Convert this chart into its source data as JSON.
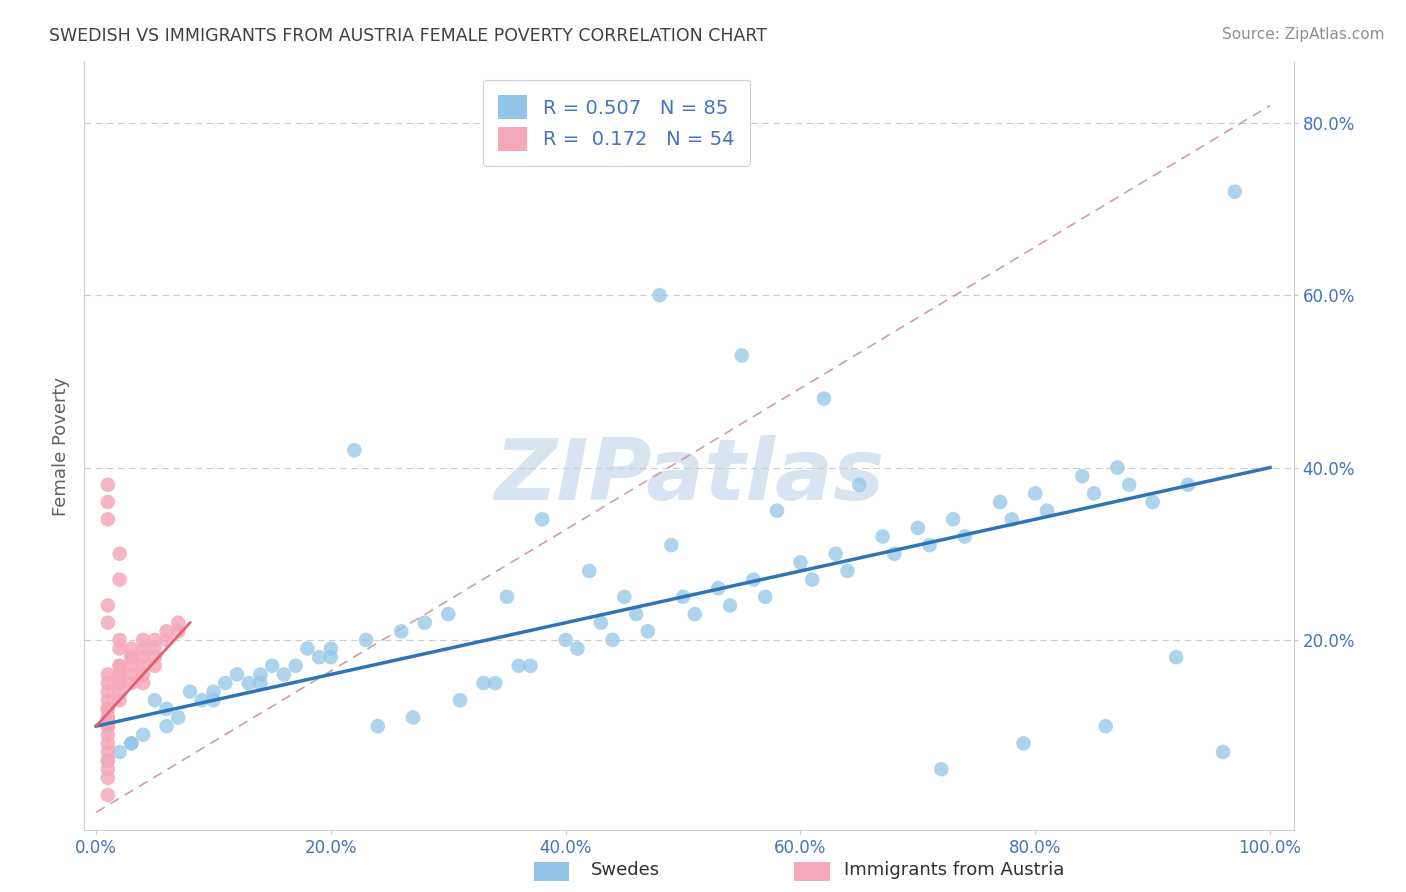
{
  "title": "SWEDISH VS IMMIGRANTS FROM AUSTRIA FEMALE POVERTY CORRELATION CHART",
  "source": "Source: ZipAtlas.com",
  "ylabel": "Female Poverty",
  "watermark": "ZIPatlas",
  "x_min": 0.0,
  "x_max": 1.0,
  "y_min": -0.02,
  "y_max": 0.87,
  "x_ticks": [
    0.0,
    0.2,
    0.4,
    0.6,
    0.8,
    1.0
  ],
  "x_tick_labels": [
    "0.0%",
    "20.0%",
    "40.0%",
    "60.0%",
    "80.0%",
    "100.0%"
  ],
  "y_ticks": [
    0.2,
    0.4,
    0.6,
    0.8
  ],
  "y_tick_labels": [
    "20.0%",
    "40.0%",
    "60.0%",
    "80.0%"
  ],
  "blue_R": 0.507,
  "blue_N": 85,
  "pink_R": 0.172,
  "pink_N": 54,
  "blue_color": "#92C5E8",
  "pink_color": "#F5A8BA",
  "blue_line_color": "#2E75B6",
  "pink_line_color": "#E06070",
  "ref_line_color": "#D0A0A0",
  "legend_label_blue": "Swedes",
  "legend_label_pink": "Immigrants from Austria",
  "title_color": "#404040",
  "source_color": "#909090",
  "axis_label_color": "#606060",
  "tick_color": "#4472C4",
  "watermark_color": "#D8E4F0",
  "blue_x": [
    0.97,
    0.48,
    0.55,
    0.62,
    0.22,
    0.05,
    0.08,
    0.12,
    0.15,
    0.18,
    0.03,
    0.06,
    0.09,
    0.11,
    0.14,
    0.17,
    0.2,
    0.23,
    0.26,
    0.3,
    0.33,
    0.36,
    0.4,
    0.43,
    0.46,
    0.5,
    0.53,
    0.56,
    0.6,
    0.63,
    0.67,
    0.7,
    0.73,
    0.77,
    0.8,
    0.84,
    0.87,
    0.9,
    0.93,
    0.01,
    0.02,
    0.04,
    0.07,
    0.1,
    0.13,
    0.16,
    0.19,
    0.24,
    0.27,
    0.31,
    0.34,
    0.37,
    0.41,
    0.44,
    0.47,
    0.51,
    0.54,
    0.57,
    0.61,
    0.64,
    0.68,
    0.71,
    0.74,
    0.78,
    0.81,
    0.85,
    0.88,
    0.03,
    0.06,
    0.1,
    0.14,
    0.2,
    0.28,
    0.35,
    0.42,
    0.49,
    0.58,
    0.65,
    0.72,
    0.79,
    0.86,
    0.92,
    0.96,
    0.38,
    0.45
  ],
  "blue_y": [
    0.72,
    0.6,
    0.53,
    0.48,
    0.42,
    0.13,
    0.14,
    0.16,
    0.17,
    0.19,
    0.08,
    0.12,
    0.13,
    0.15,
    0.16,
    0.17,
    0.19,
    0.2,
    0.21,
    0.23,
    0.15,
    0.17,
    0.2,
    0.22,
    0.23,
    0.25,
    0.26,
    0.27,
    0.29,
    0.3,
    0.32,
    0.33,
    0.34,
    0.36,
    0.37,
    0.39,
    0.4,
    0.36,
    0.38,
    0.06,
    0.07,
    0.09,
    0.11,
    0.14,
    0.15,
    0.16,
    0.18,
    0.1,
    0.11,
    0.13,
    0.15,
    0.17,
    0.19,
    0.2,
    0.21,
    0.23,
    0.24,
    0.25,
    0.27,
    0.28,
    0.3,
    0.31,
    0.32,
    0.34,
    0.35,
    0.37,
    0.38,
    0.08,
    0.1,
    0.13,
    0.15,
    0.18,
    0.22,
    0.25,
    0.28,
    0.31,
    0.35,
    0.38,
    0.05,
    0.08,
    0.1,
    0.18,
    0.07,
    0.34,
    0.25
  ],
  "pink_x": [
    0.01,
    0.01,
    0.01,
    0.02,
    0.02,
    0.01,
    0.01,
    0.02,
    0.02,
    0.03,
    0.01,
    0.01,
    0.01,
    0.01,
    0.02,
    0.02,
    0.02,
    0.03,
    0.03,
    0.03,
    0.01,
    0.01,
    0.01,
    0.01,
    0.01,
    0.01,
    0.01,
    0.01,
    0.01,
    0.01,
    0.01,
    0.01,
    0.02,
    0.02,
    0.02,
    0.02,
    0.02,
    0.03,
    0.03,
    0.04,
    0.04,
    0.04,
    0.04,
    0.04,
    0.04,
    0.05,
    0.05,
    0.05,
    0.05,
    0.06,
    0.06,
    0.07,
    0.07,
    0.01
  ],
  "pink_y": [
    0.38,
    0.36,
    0.34,
    0.3,
    0.27,
    0.24,
    0.22,
    0.2,
    0.19,
    0.18,
    0.16,
    0.15,
    0.14,
    0.13,
    0.17,
    0.16,
    0.15,
    0.17,
    0.16,
    0.15,
    0.12,
    0.11,
    0.1,
    0.09,
    0.08,
    0.07,
    0.06,
    0.05,
    0.04,
    0.1,
    0.11,
    0.12,
    0.13,
    0.14,
    0.15,
    0.16,
    0.17,
    0.18,
    0.19,
    0.2,
    0.19,
    0.18,
    0.17,
    0.16,
    0.15,
    0.2,
    0.19,
    0.18,
    0.17,
    0.21,
    0.2,
    0.22,
    0.21,
    0.02
  ]
}
